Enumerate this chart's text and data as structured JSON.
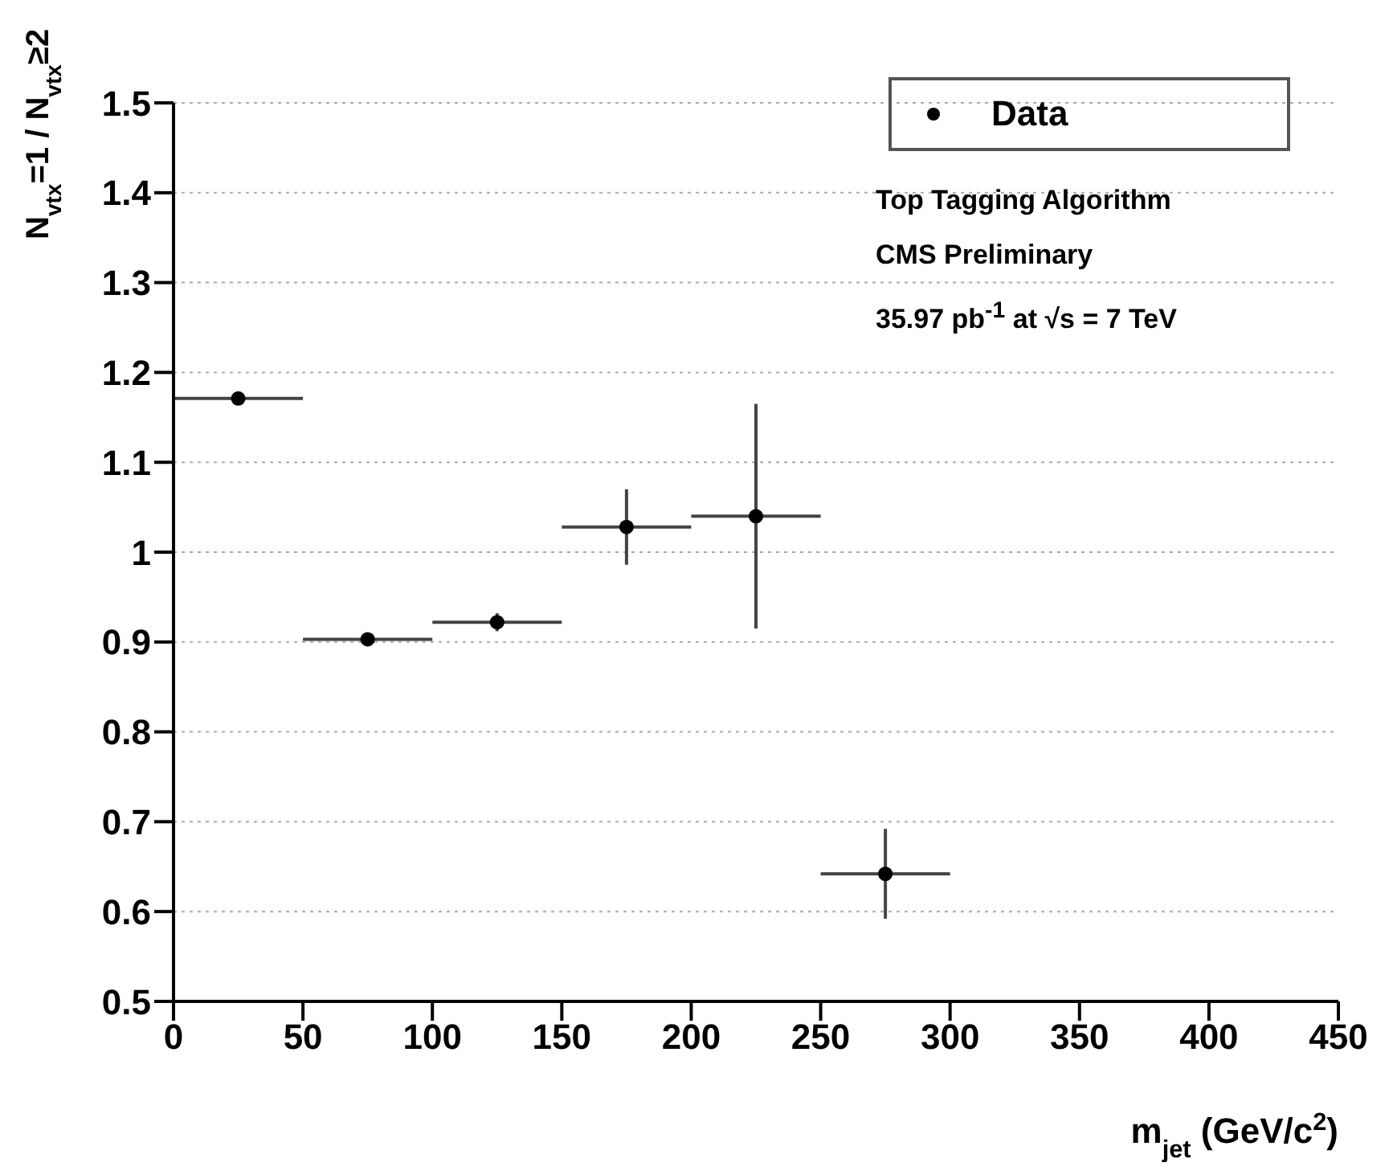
{
  "chart_data": {
    "type": "scatter",
    "xlabel": "m$_{jet}$ (GeV/c$^{2}$)",
    "ylabel": "N$_{vtx}$=1 / N$_{vtx}$≥2",
    "x": [
      25,
      75,
      125,
      175,
      225,
      275
    ],
    "series": [
      {
        "name": "Data",
        "color": "#000000",
        "values": [
          1.171,
          0.903,
          0.922,
          1.028,
          1.04,
          0.642
        ],
        "errors": [
          null,
          null,
          0.01,
          0.042,
          0.125,
          0.05
        ],
        "xerrors": [
          25,
          25,
          25,
          25,
          25,
          25
        ]
      }
    ],
    "xlim": [
      0,
      450
    ],
    "xticks": [
      0,
      50,
      100,
      150,
      200,
      250,
      300,
      350,
      400,
      450
    ],
    "ylim": [
      0.5,
      1.5
    ],
    "yticks": [
      0.5,
      0.6,
      0.7,
      0.8,
      0.9,
      {
        "value": 1.0,
        "label": "1"
      },
      1.1,
      1.2,
      1.3,
      1.4,
      1.5
    ],
    "grid": "y",
    "legend": "top right",
    "marker": "circle",
    "annotations": [
      "Top Tagging Algorithm",
      "CMS Preliminary",
      "35.97 pb$^{-1}$ at √s = 7 TeV"
    ]
  }
}
